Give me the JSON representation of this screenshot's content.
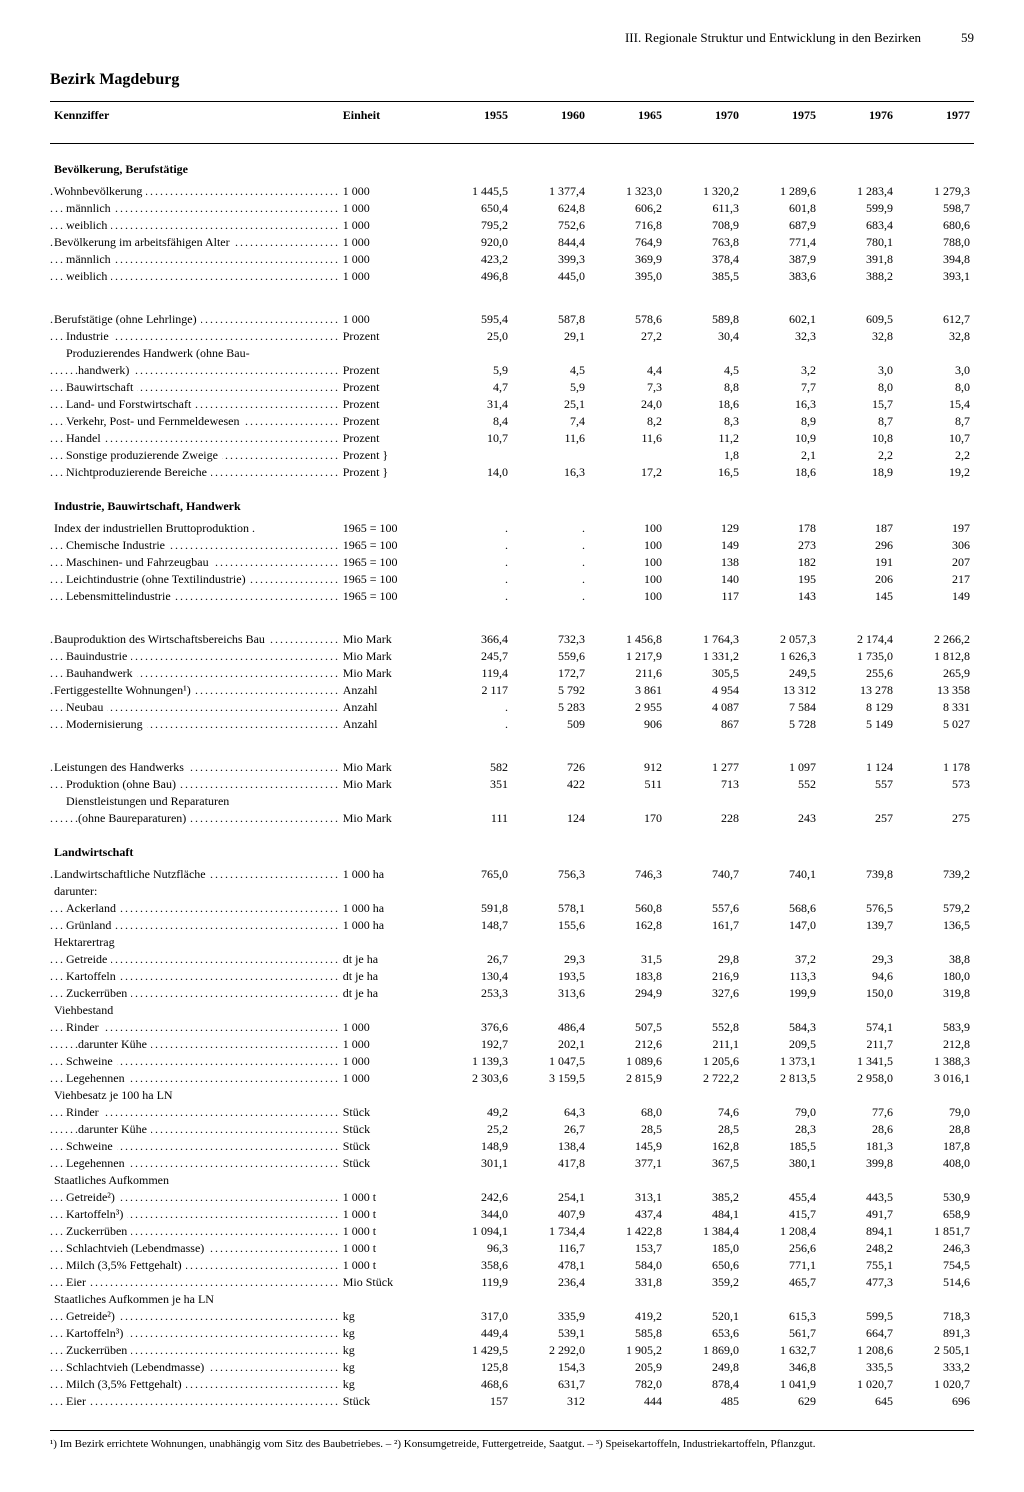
{
  "page": {
    "chapter": "III. Regionale Struktur und Entwicklung in den Bezirken",
    "number": "59",
    "title": "Bezirk Magdeburg"
  },
  "columns": {
    "label": "Kennziffer",
    "unit": "Einheit",
    "years": [
      "1955",
      "1960",
      "1965",
      "1970",
      "1975",
      "1976",
      "1977"
    ]
  },
  "footnotes": "¹) Im Bezirk errichtete Wohnungen, unabhängig vom Sitz des Baubetriebes. – ²) Konsumgetreide, Futtergetreide, Saatgut. – ³) Speisekartoffeln, Industriekartoffeln, Pflanzgut.",
  "rows": [
    {
      "type": "section",
      "label": "Bevölkerung, Berufstätige"
    },
    {
      "label": "Wohnbevölkerung",
      "unit": "1 000",
      "v": [
        "1 445,5",
        "1 377,4",
        "1 323,0",
        "1 320,2",
        "1 289,6",
        "1 283,4",
        "1 279,3"
      ]
    },
    {
      "label": "männlich",
      "indent": 1,
      "unit": "1 000",
      "v": [
        "650,4",
        "624,8",
        "606,2",
        "611,3",
        "601,8",
        "599,9",
        "598,7"
      ]
    },
    {
      "label": "weiblich",
      "indent": 1,
      "unit": "1 000",
      "v": [
        "795,2",
        "752,6",
        "716,8",
        "708,9",
        "687,9",
        "683,4",
        "680,6"
      ]
    },
    {
      "label": "Bevölkerung im arbeitsfähigen Alter",
      "unit": "1 000",
      "v": [
        "920,0",
        "844,4",
        "764,9",
        "763,8",
        "771,4",
        "780,1",
        "788,0"
      ]
    },
    {
      "label": "männlich",
      "indent": 1,
      "unit": "1 000",
      "v": [
        "423,2",
        "399,3",
        "369,9",
        "378,4",
        "387,9",
        "391,8",
        "394,8"
      ]
    },
    {
      "label": "weiblich",
      "indent": 1,
      "unit": "1 000",
      "v": [
        "496,8",
        "445,0",
        "395,0",
        "385,5",
        "383,6",
        "388,2",
        "393,1"
      ]
    },
    {
      "type": "gap"
    },
    {
      "label": "Berufstätige (ohne Lehrlinge)",
      "unit": "1 000",
      "v": [
        "595,4",
        "587,8",
        "578,6",
        "589,8",
        "602,1",
        "609,5",
        "612,7"
      ]
    },
    {
      "label": "Industrie",
      "indent": 1,
      "unit": "Prozent",
      "v": [
        "25,0",
        "29,1",
        "27,2",
        "30,4",
        "32,3",
        "32,8",
        "32,8"
      ]
    },
    {
      "label": "Produzierendes Handwerk (ohne Bau-",
      "indent": 1,
      "nodots": true,
      "unit": "",
      "v": [
        "",
        "",
        "",
        "",
        "",
        "",
        ""
      ]
    },
    {
      "label": "handwerk)",
      "indent": 2,
      "unit": "Prozent",
      "v": [
        "5,9",
        "4,5",
        "4,4",
        "4,5",
        "3,2",
        "3,0",
        "3,0"
      ]
    },
    {
      "label": "Bauwirtschaft",
      "indent": 1,
      "unit": "Prozent",
      "v": [
        "4,7",
        "5,9",
        "7,3",
        "8,8",
        "7,7",
        "8,0",
        "8,0"
      ]
    },
    {
      "label": "Land- und Forstwirtschaft",
      "indent": 1,
      "unit": "Prozent",
      "v": [
        "31,4",
        "25,1",
        "24,0",
        "18,6",
        "16,3",
        "15,7",
        "15,4"
      ]
    },
    {
      "label": "Verkehr, Post- und Fernmeldewesen",
      "indent": 1,
      "unit": "Prozent",
      "v": [
        "8,4",
        "7,4",
        "8,2",
        "8,3",
        "8,9",
        "8,7",
        "8,7"
      ]
    },
    {
      "label": "Handel",
      "indent": 1,
      "unit": "Prozent",
      "v": [
        "10,7",
        "11,6",
        "11,6",
        "11,2",
        "10,9",
        "10,8",
        "10,7"
      ]
    },
    {
      "label": "Sonstige produzierende Zweige",
      "indent": 1,
      "unit": "Prozent  }",
      "braceTop": true,
      "v": [
        "",
        "",
        "",
        "1,8",
        "2,1",
        "2,2",
        "2,2"
      ],
      "merge_below": true
    },
    {
      "label": "Nichtproduzierende Bereiche",
      "indent": 1,
      "unit": "Prozent  }",
      "v": [
        "14,0",
        "16,3",
        "17,2",
        "16,5",
        "18,6",
        "18,9",
        "19,2"
      ],
      "merge_above": true
    },
    {
      "type": "section",
      "label": "Industrie, Bauwirtschaft, Handwerk"
    },
    {
      "label": "Index der industriellen Bruttoproduktion .",
      "nodots": true,
      "unit": "1965 = 100",
      "v": [
        ".",
        ".",
        "100",
        "129",
        "178",
        "187",
        "197"
      ]
    },
    {
      "label": "Chemische Industrie",
      "indent": 1,
      "unit": "1965 = 100",
      "v": [
        ".",
        ".",
        "100",
        "149",
        "273",
        "296",
        "306"
      ]
    },
    {
      "label": "Maschinen- und Fahrzeugbau",
      "indent": 1,
      "unit": "1965 = 100",
      "v": [
        ".",
        ".",
        "100",
        "138",
        "182",
        "191",
        "207"
      ]
    },
    {
      "label": "Leichtindustrie (ohne Textilindustrie)",
      "indent": 1,
      "unit": "1965 = 100",
      "v": [
        ".",
        ".",
        "100",
        "140",
        "195",
        "206",
        "217"
      ]
    },
    {
      "label": "Lebensmittelindustrie",
      "indent": 1,
      "unit": "1965 = 100",
      "v": [
        ".",
        ".",
        "100",
        "117",
        "143",
        "145",
        "149"
      ]
    },
    {
      "type": "gap"
    },
    {
      "label": "Bauproduktion des Wirtschaftsbereichs Bau",
      "unit": "Mio Mark",
      "v": [
        "366,4",
        "732,3",
        "1 456,8",
        "1 764,3",
        "2 057,3",
        "2 174,4",
        "2 266,2"
      ]
    },
    {
      "label": "Bauindustrie",
      "indent": 1,
      "unit": "Mio Mark",
      "v": [
        "245,7",
        "559,6",
        "1 217,9",
        "1 331,2",
        "1 626,3",
        "1 735,0",
        "1 812,8"
      ]
    },
    {
      "label": "Bauhandwerk",
      "indent": 1,
      "unit": "Mio Mark",
      "v": [
        "119,4",
        "172,7",
        "211,6",
        "305,5",
        "249,5",
        "255,6",
        "265,9"
      ]
    },
    {
      "label": "Fertiggestellte Wohnungen¹)",
      "unit": "Anzahl",
      "v": [
        "2 117",
        "5 792",
        "3 861",
        "4 954",
        "13 312",
        "13 278",
        "13 358"
      ]
    },
    {
      "label": "Neubau",
      "indent": 1,
      "unit": "Anzahl",
      "v": [
        ".",
        "5 283",
        "2 955",
        "4 087",
        "7 584",
        "8 129",
        "8 331"
      ]
    },
    {
      "label": "Modernisierung",
      "indent": 1,
      "unit": "Anzahl",
      "v": [
        ".",
        "509",
        "906",
        "867",
        "5 728",
        "5 149",
        "5 027"
      ]
    },
    {
      "type": "gap"
    },
    {
      "label": "Leistungen des Handwerks",
      "unit": "Mio Mark",
      "v": [
        "582",
        "726",
        "912",
        "1 277",
        "1 097",
        "1 124",
        "1 178"
      ]
    },
    {
      "label": "Produktion (ohne Bau)",
      "indent": 1,
      "unit": "Mio Mark",
      "v": [
        "351",
        "422",
        "511",
        "713",
        "552",
        "557",
        "573"
      ]
    },
    {
      "label": "Dienstleistungen und Reparaturen",
      "indent": 1,
      "nodots": true,
      "unit": "",
      "v": [
        "",
        "",
        "",
        "",
        "",
        "",
        ""
      ]
    },
    {
      "label": "(ohne Baureparaturen)",
      "indent": 2,
      "unit": "Mio Mark",
      "v": [
        "111",
        "124",
        "170",
        "228",
        "243",
        "257",
        "275"
      ]
    },
    {
      "type": "section",
      "label": "Landwirtschaft"
    },
    {
      "label": "Landwirtschaftliche Nutzfläche",
      "unit": "1 000 ha",
      "v": [
        "765,0",
        "756,3",
        "746,3",
        "740,7",
        "740,1",
        "739,8",
        "739,2"
      ]
    },
    {
      "label": "darunter:",
      "nodots": true,
      "unit": "",
      "v": [
        "",
        "",
        "",
        "",
        "",
        "",
        ""
      ]
    },
    {
      "label": "Ackerland",
      "indent": 1,
      "unit": "1 000 ha",
      "v": [
        "591,8",
        "578,1",
        "560,8",
        "557,6",
        "568,6",
        "576,5",
        "579,2"
      ]
    },
    {
      "label": "Grünland",
      "indent": 1,
      "unit": "1 000 ha",
      "v": [
        "148,7",
        "155,6",
        "162,8",
        "161,7",
        "147,0",
        "139,7",
        "136,5"
      ]
    },
    {
      "label": "Hektarertrag",
      "nodots": true,
      "unit": "",
      "v": [
        "",
        "",
        "",
        "",
        "",
        "",
        ""
      ]
    },
    {
      "label": "Getreide",
      "indent": 1,
      "unit": "dt je ha",
      "v": [
        "26,7",
        "29,3",
        "31,5",
        "29,8",
        "37,2",
        "29,3",
        "38,8"
      ]
    },
    {
      "label": "Kartoffeln",
      "indent": 1,
      "unit": "dt je ha",
      "v": [
        "130,4",
        "193,5",
        "183,8",
        "216,9",
        "113,3",
        "94,6",
        "180,0"
      ]
    },
    {
      "label": "Zuckerrüben",
      "indent": 1,
      "unit": "dt je ha",
      "v": [
        "253,3",
        "313,6",
        "294,9",
        "327,6",
        "199,9",
        "150,0",
        "319,8"
      ]
    },
    {
      "label": "Viehbestand",
      "nodots": true,
      "unit": "",
      "v": [
        "",
        "",
        "",
        "",
        "",
        "",
        ""
      ]
    },
    {
      "label": "Rinder",
      "indent": 1,
      "unit": "1 000",
      "v": [
        "376,6",
        "486,4",
        "507,5",
        "552,8",
        "584,3",
        "574,1",
        "583,9"
      ]
    },
    {
      "label": "darunter Kühe",
      "indent": 2,
      "unit": "1 000",
      "v": [
        "192,7",
        "202,1",
        "212,6",
        "211,1",
        "209,5",
        "211,7",
        "212,8"
      ]
    },
    {
      "label": "Schweine",
      "indent": 1,
      "unit": "1 000",
      "v": [
        "1 139,3",
        "1 047,5",
        "1 089,6",
        "1 205,6",
        "1 373,1",
        "1 341,5",
        "1 388,3"
      ]
    },
    {
      "label": "Legehennen",
      "indent": 1,
      "unit": "1 000",
      "v": [
        "2 303,6",
        "3 159,5",
        "2 815,9",
        "2 722,2",
        "2 813,5",
        "2 958,0",
        "3 016,1"
      ]
    },
    {
      "label": "Viehbesatz je 100 ha LN",
      "nodots": true,
      "unit": "",
      "v": [
        "",
        "",
        "",
        "",
        "",
        "",
        ""
      ]
    },
    {
      "label": "Rinder",
      "indent": 1,
      "unit": "Stück",
      "v": [
        "49,2",
        "64,3",
        "68,0",
        "74,6",
        "79,0",
        "77,6",
        "79,0"
      ]
    },
    {
      "label": "darunter Kühe",
      "indent": 2,
      "unit": "Stück",
      "v": [
        "25,2",
        "26,7",
        "28,5",
        "28,5",
        "28,3",
        "28,6",
        "28,8"
      ]
    },
    {
      "label": "Schweine",
      "indent": 1,
      "unit": "Stück",
      "v": [
        "148,9",
        "138,4",
        "145,9",
        "162,8",
        "185,5",
        "181,3",
        "187,8"
      ]
    },
    {
      "label": "Legehennen",
      "indent": 1,
      "unit": "Stück",
      "v": [
        "301,1",
        "417,8",
        "377,1",
        "367,5",
        "380,1",
        "399,8",
        "408,0"
      ]
    },
    {
      "label": "Staatliches Aufkommen",
      "nodots": true,
      "unit": "",
      "v": [
        "",
        "",
        "",
        "",
        "",
        "",
        ""
      ]
    },
    {
      "label": "Getreide²)",
      "indent": 1,
      "unit": "1 000 t",
      "v": [
        "242,6",
        "254,1",
        "313,1",
        "385,2",
        "455,4",
        "443,5",
        "530,9"
      ]
    },
    {
      "label": "Kartoffeln³)",
      "indent": 1,
      "unit": "1 000 t",
      "v": [
        "344,0",
        "407,9",
        "437,4",
        "484,1",
        "415,7",
        "491,7",
        "658,9"
      ]
    },
    {
      "label": "Zuckerrüben",
      "indent": 1,
      "unit": "1 000 t",
      "v": [
        "1 094,1",
        "1 734,4",
        "1 422,8",
        "1 384,4",
        "1 208,4",
        "894,1",
        "1 851,7"
      ]
    },
    {
      "label": "Schlachtvieh (Lebendmasse)",
      "indent": 1,
      "unit": "1 000 t",
      "v": [
        "96,3",
        "116,7",
        "153,7",
        "185,0",
        "256,6",
        "248,2",
        "246,3"
      ]
    },
    {
      "label": "Milch (3,5% Fettgehalt)",
      "indent": 1,
      "unit": "1 000 t",
      "v": [
        "358,6",
        "478,1",
        "584,0",
        "650,6",
        "771,1",
        "755,1",
        "754,5"
      ]
    },
    {
      "label": "Eier",
      "indent": 1,
      "unit": "Mio Stück",
      "v": [
        "119,9",
        "236,4",
        "331,8",
        "359,2",
        "465,7",
        "477,3",
        "514,6"
      ]
    },
    {
      "label": "Staatliches Aufkommen je ha LN",
      "nodots": true,
      "unit": "",
      "v": [
        "",
        "",
        "",
        "",
        "",
        "",
        ""
      ]
    },
    {
      "label": "Getreide²)",
      "indent": 1,
      "unit": "kg",
      "v": [
        "317,0",
        "335,9",
        "419,2",
        "520,1",
        "615,3",
        "599,5",
        "718,3"
      ]
    },
    {
      "label": "Kartoffeln³)",
      "indent": 1,
      "unit": "kg",
      "v": [
        "449,4",
        "539,1",
        "585,8",
        "653,6",
        "561,7",
        "664,7",
        "891,3"
      ]
    },
    {
      "label": "Zuckerrüben",
      "indent": 1,
      "unit": "kg",
      "v": [
        "1 429,5",
        "2 292,0",
        "1 905,2",
        "1 869,0",
        "1 632,7",
        "1 208,6",
        "2 505,1"
      ]
    },
    {
      "label": "Schlachtvieh (Lebendmasse)",
      "indent": 1,
      "unit": "kg",
      "v": [
        "125,8",
        "154,3",
        "205,9",
        "249,8",
        "346,8",
        "335,5",
        "333,2"
      ]
    },
    {
      "label": "Milch (3,5% Fettgehalt)",
      "indent": 1,
      "unit": "kg",
      "v": [
        "468,6",
        "631,7",
        "782,0",
        "878,4",
        "1 041,9",
        "1 020,7",
        "1 020,7"
      ]
    },
    {
      "label": "Eier",
      "indent": 1,
      "unit": "Stück",
      "v": [
        "157",
        "312",
        "444",
        "485",
        "629",
        "645",
        "696"
      ]
    }
  ]
}
